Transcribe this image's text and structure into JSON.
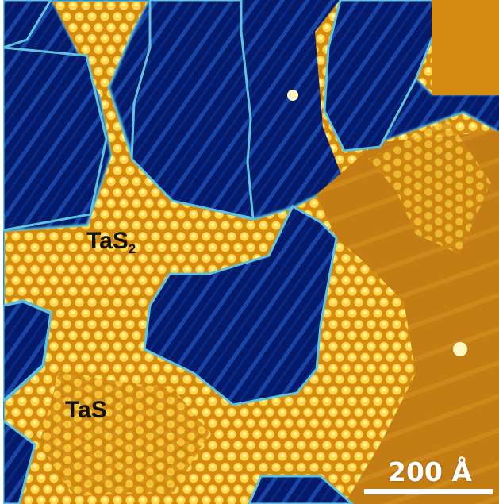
{
  "image": {
    "subject": "scanning-tunneling-microscopy",
    "palette": {
      "substrate_dark": "#041a6a",
      "substrate_stripe": "#1f52b8",
      "island_edge": "#5fc3de",
      "island_base": "#d0880c",
      "island_atom": "#ffd84a",
      "film_smooth": "#c57f14"
    }
  },
  "labels": {
    "phase_a_main": "TaS",
    "phase_a_sub": "2",
    "phase_b": "TaS"
  },
  "scale_bar": {
    "text": "200 Å",
    "color": "#ffffff"
  }
}
